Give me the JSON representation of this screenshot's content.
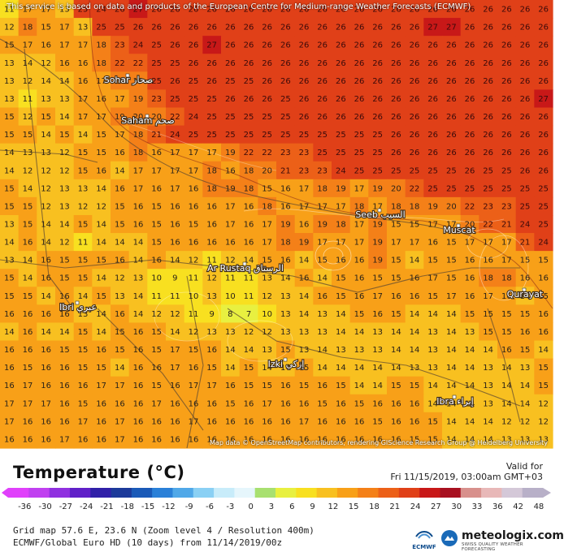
{
  "attribution_top": "This service is based on data and products of the European Centre for Medium-range Weather Forecasts (ECMWF)",
  "attribution_bottom": "Map data © OpenStreetMap contributors, rendering GIScience Research Group @ Heidelberg University",
  "legend": {
    "title": "Temperature (°C)",
    "valid_label": "Valid for",
    "valid_time": "Fri 11/15/2019, 03:00am GMT+03",
    "ticks": [
      "-36",
      "-30",
      "-27",
      "-24",
      "-21",
      "-18",
      "-15",
      "-12",
      "-9",
      "-6",
      "-3",
      "0",
      "3",
      "6",
      "9",
      "12",
      "15",
      "18",
      "21",
      "24",
      "27",
      "30",
      "33",
      "36",
      "42",
      "48"
    ],
    "colors": [
      "#e040fb",
      "#c040f0",
      "#9030e0",
      "#6020c8",
      "#3020a8",
      "#1c3a9a",
      "#1a5ab8",
      "#2a80d8",
      "#50a8e8",
      "#8ad0f4",
      "#c8ecfa",
      "#e6f6fc",
      "#a8e070",
      "#e8f040",
      "#f8e020",
      "#f8c020",
      "#f8a018",
      "#f48018",
      "#ec6018",
      "#e04018",
      "#c81818",
      "#a81020",
      "#d8908c",
      "#e8b8b8",
      "#d4c8d8",
      "#b8b0c8"
    ]
  },
  "footer": {
    "line1": "Grid map 57.6 E, 23.6 N (Zoom level 4 / Resolution 400m)",
    "line2": "ECMWF/Global Euro HD (10 days) from 11/14/2019/00z"
  },
  "logos": {
    "ecmwf": "ECMWF",
    "meteologix": "meteologix.com",
    "meteologix_tag": "SWISS QUALITY WEATHER FORECASTING"
  },
  "places": [
    {
      "name": "Sohar صحار"
    },
    {
      "name": "Saham صحم"
    },
    {
      "name": "Ar Rustaq الرستاق"
    },
    {
      "name": "Ibri عبري"
    },
    {
      "name": "Seeb السيب"
    },
    {
      "name": "Muscat"
    },
    {
      "name": "Qurayat"
    },
    {
      "name": "Izki إزكي"
    },
    {
      "name": "Ibra إبراء"
    }
  ],
  "grid_values": [
    [
      11,
      17,
      17,
      13,
      25,
      24,
      26,
      27,
      26,
      26,
      26,
      26,
      26,
      26,
      26,
      26,
      26,
      26,
      26,
      26,
      26,
      26,
      26,
      26,
      26,
      26,
      26,
      26,
      26,
      26
    ],
    [
      12,
      18,
      15,
      17,
      13,
      25,
      25,
      26,
      26,
      26,
      26,
      26,
      26,
      26,
      26,
      26,
      26,
      26,
      26,
      26,
      26,
      26,
      26,
      27,
      27,
      26,
      26,
      26,
      26,
      26
    ],
    [
      15,
      17,
      16,
      17,
      17,
      18,
      23,
      24,
      25,
      26,
      26,
      27,
      26,
      26,
      26,
      26,
      26,
      26,
      26,
      26,
      26,
      26,
      26,
      26,
      26,
      26,
      26,
      26,
      26,
      26
    ],
    [
      13,
      14,
      12,
      16,
      16,
      18,
      22,
      22,
      25,
      25,
      26,
      26,
      26,
      26,
      26,
      26,
      26,
      26,
      26,
      26,
      26,
      26,
      26,
      26,
      26,
      26,
      26,
      26,
      26,
      26
    ],
    [
      13,
      12,
      14,
      14,
      16,
      17,
      20,
      18,
      25,
      26,
      25,
      26,
      25,
      25,
      26,
      26,
      26,
      26,
      26,
      26,
      26,
      26,
      26,
      26,
      26,
      26,
      26,
      26,
      26,
      26
    ],
    [
      13,
      11,
      13,
      13,
      17,
      16,
      17,
      19,
      23,
      25,
      25,
      25,
      26,
      26,
      26,
      25,
      26,
      26,
      26,
      26,
      26,
      26,
      26,
      26,
      26,
      26,
      26,
      26,
      26,
      27
    ],
    [
      15,
      12,
      15,
      14,
      17,
      17,
      19,
      20,
      20,
      22,
      24,
      25,
      25,
      25,
      25,
      25,
      26,
      26,
      26,
      26,
      26,
      26,
      26,
      26,
      26,
      26,
      26,
      26,
      26,
      26
    ],
    [
      15,
      15,
      14,
      15,
      14,
      15,
      17,
      18,
      21,
      24,
      25,
      25,
      25,
      25,
      25,
      25,
      25,
      25,
      25,
      25,
      25,
      26,
      26,
      26,
      26,
      26,
      26,
      26,
      26,
      26
    ],
    [
      14,
      13,
      13,
      12,
      15,
      15,
      16,
      18,
      16,
      17,
      17,
      17,
      19,
      22,
      22,
      23,
      23,
      25,
      25,
      25,
      25,
      26,
      26,
      26,
      26,
      26,
      26,
      26,
      26,
      26
    ],
    [
      14,
      12,
      12,
      12,
      15,
      16,
      14,
      17,
      17,
      17,
      17,
      18,
      16,
      18,
      20,
      21,
      23,
      23,
      24,
      25,
      25,
      25,
      25,
      25,
      25,
      26,
      25,
      25,
      26,
      26
    ],
    [
      15,
      14,
      12,
      13,
      13,
      14,
      16,
      17,
      16,
      17,
      16,
      18,
      19,
      18,
      15,
      16,
      17,
      18,
      19,
      17,
      19,
      20,
      22,
      25,
      25,
      25,
      25,
      25,
      25,
      25
    ],
    [
      15,
      15,
      12,
      13,
      12,
      12,
      15,
      16,
      15,
      16,
      16,
      16,
      17,
      16,
      18,
      16,
      17,
      17,
      17,
      18,
      17,
      18,
      18,
      19,
      20,
      22,
      23,
      23,
      25,
      25
    ],
    [
      13,
      15,
      14,
      14,
      15,
      14,
      15,
      16,
      15,
      16,
      15,
      16,
      17,
      16,
      17,
      19,
      16,
      19,
      18,
      17,
      19,
      15,
      15,
      17,
      17,
      20,
      22,
      21,
      24,
      25
    ],
    [
      14,
      16,
      14,
      12,
      11,
      14,
      14,
      14,
      15,
      16,
      16,
      16,
      16,
      16,
      17,
      18,
      19,
      17,
      17,
      17,
      19,
      17,
      17,
      16,
      15,
      17,
      17,
      17,
      21,
      24
    ],
    [
      13,
      14,
      16,
      15,
      15,
      15,
      16,
      14,
      16,
      14,
      12,
      11,
      12,
      14,
      15,
      16,
      14,
      15,
      16,
      16,
      19,
      15,
      14,
      15,
      15,
      16,
      16,
      17,
      15,
      15
    ],
    [
      15,
      14,
      16,
      15,
      15,
      14,
      12,
      13,
      10,
      9,
      11,
      12,
      11,
      11,
      13,
      14,
      16,
      14,
      15,
      16,
      15,
      15,
      16,
      17,
      15,
      16,
      18,
      18,
      16,
      16
    ],
    [
      15,
      15,
      14,
      16,
      14,
      15,
      13,
      14,
      11,
      11,
      10,
      13,
      10,
      11,
      12,
      13,
      14,
      16,
      15,
      16,
      17,
      16,
      16,
      15,
      17,
      16,
      17,
      16,
      14,
      15
    ],
    [
      16,
      16,
      16,
      16,
      13,
      14,
      16,
      14,
      12,
      12,
      11,
      9,
      8,
      7,
      10,
      13,
      14,
      13,
      14,
      15,
      16,
      15,
      14,
      14,
      14,
      15,
      15,
      15,
      15,
      16
    ],
    [
      14,
      16,
      14,
      14,
      15,
      14,
      15,
      16,
      15,
      14,
      12,
      13,
      13,
      12,
      12,
      13,
      13,
      13,
      14,
      14,
      13,
      14,
      14,
      13,
      14,
      13,
      15,
      15,
      16,
      16
    ],
    [
      16,
      16,
      16,
      15,
      15,
      16,
      15,
      16,
      15,
      17,
      15,
      16,
      14,
      14,
      13,
      15,
      13,
      14,
      13,
      13,
      13,
      14,
      14,
      13,
      14,
      14,
      14,
      16,
      15,
      14
    ],
    [
      16,
      15,
      16,
      16,
      15,
      15,
      14,
      16,
      16,
      17,
      16,
      15,
      14,
      15,
      14,
      14,
      15,
      14,
      14,
      14,
      14,
      14,
      13,
      13,
      14,
      14,
      13,
      14,
      13,
      15
    ],
    [
      16,
      17,
      16,
      16,
      16,
      17,
      17,
      16,
      15,
      16,
      17,
      17,
      16,
      15,
      15,
      16,
      15,
      16,
      15,
      14,
      14,
      15,
      15,
      14,
      14,
      14,
      13,
      14,
      14,
      15
    ],
    [
      17,
      17,
      17,
      16,
      15,
      16,
      16,
      16,
      17,
      16,
      16,
      16,
      15,
      16,
      17,
      16,
      16,
      15,
      16,
      15,
      16,
      16,
      16,
      14,
      14,
      14,
      13,
      14,
      14,
      12
    ],
    [
      17,
      16,
      16,
      16,
      17,
      16,
      17,
      16,
      16,
      16,
      17,
      16,
      16,
      16,
      16,
      16,
      17,
      16,
      16,
      16,
      15,
      16,
      16,
      15,
      14,
      14,
      14,
      12,
      12,
      12
    ],
    [
      16,
      16,
      16,
      17,
      16,
      16,
      17,
      16,
      16,
      16,
      16,
      16,
      16,
      16,
      16,
      16,
      16,
      16,
      16,
      16,
      16,
      16,
      15,
      15,
      14,
      14,
      14,
      13,
      13,
      13
    ]
  ]
}
